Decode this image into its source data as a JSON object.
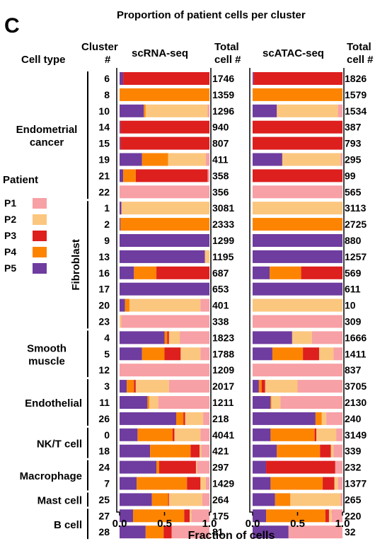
{
  "panel_letter": "C",
  "colors": {
    "P1": "#F7A0A5",
    "P2": "#FBC67E",
    "P3": "#DD1F1E",
    "P4": "#FD8400",
    "P5": "#6F3C9F"
  },
  "chart_data": {
    "type": "bar",
    "title": "Proportion of patient cells per cluster",
    "xlabel": "Fraction of cells",
    "xlim": [
      0,
      1
    ],
    "xticks": [
      "0.0",
      "0.5",
      "1.0"
    ],
    "headers": {
      "cell_type": "Cell type",
      "cluster_line1": "Cluster",
      "cluster_line2": "#",
      "total_line1": "Total",
      "total_line2": "cell #",
      "atac_total_line1": "Total",
      "atac_total_line2": "cell #"
    },
    "legend": {
      "title": "Patient",
      "entries": [
        "P1",
        "P2",
        "P3",
        "P4",
        "P5"
      ]
    },
    "panels": [
      "scRNA-seq",
      "scATAC-seq"
    ],
    "groups": [
      {
        "label": [
          "Endometrial",
          "cancer"
        ],
        "clusters": [
          "6",
          "8",
          "10",
          "14",
          "15",
          "19",
          "21",
          "22"
        ]
      },
      {
        "label": [
          "Fibroblast"
        ],
        "clusters": [
          "1",
          "2",
          "9",
          "13",
          "16",
          "17",
          "20",
          "23"
        ],
        "vertical": true
      },
      {
        "label": [
          "Smooth",
          "muscle"
        ],
        "clusters": [
          "4",
          "5",
          "12"
        ]
      },
      {
        "label": [
          "Endothelial"
        ],
        "clusters": [
          "3",
          "11",
          "26"
        ]
      },
      {
        "label": [
          "NK/T cell"
        ],
        "clusters": [
          "0",
          "18"
        ]
      },
      {
        "label": [
          "Macrophage"
        ],
        "clusters": [
          "24",
          "7"
        ]
      },
      {
        "label": [
          "Mast cell"
        ],
        "clusters": [
          "25"
        ]
      },
      {
        "label": [
          "B cell"
        ],
        "clusters": [
          "27",
          "28"
        ]
      }
    ],
    "rows": [
      {
        "cluster": "6",
        "rna_total": "1746",
        "atac_total": "1826",
        "rna": [
          0,
          0,
          0.96,
          0,
          0.04
        ],
        "atac": [
          0,
          0,
          0.99,
          0,
          0.01
        ]
      },
      {
        "cluster": "8",
        "rna_total": "1359",
        "atac_total": "1579",
        "rna": [
          0,
          0,
          0,
          1.0,
          0
        ],
        "atac": [
          0,
          0,
          0,
          1.0,
          0
        ]
      },
      {
        "cluster": "10",
        "rna_total": "1296",
        "atac_total": "1534",
        "rna": [
          0.02,
          0.69,
          0,
          0.02,
          0.27
        ],
        "atac": [
          0.05,
          0.68,
          0,
          0,
          0.27
        ]
      },
      {
        "cluster": "14",
        "rna_total": "940",
        "atac_total": "387",
        "rna": [
          0,
          0,
          0.99,
          0,
          0.01
        ],
        "atac": [
          0,
          0,
          1.0,
          0,
          0
        ]
      },
      {
        "cluster": "15",
        "rna_total": "807",
        "atac_total": "793",
        "rna": [
          0,
          0,
          0.99,
          0,
          0.01
        ],
        "atac": [
          0,
          0,
          1.0,
          0,
          0
        ]
      },
      {
        "cluster": "19",
        "rna_total": "411",
        "atac_total": "295",
        "rna": [
          0.04,
          0.42,
          0,
          0.29,
          0.25
        ],
        "atac": [
          0.02,
          0.65,
          0,
          0,
          0.33
        ]
      },
      {
        "cluster": "21",
        "rna_total": "358",
        "atac_total": "99",
        "rna": [
          0.02,
          0,
          0.8,
          0.14,
          0.04
        ],
        "atac": [
          0,
          0,
          1.0,
          0,
          0
        ]
      },
      {
        "cluster": "22",
        "rna_total": "356",
        "atac_total": "565",
        "rna": [
          1.0,
          0,
          0,
          0,
          0
        ],
        "atac": [
          1.0,
          0,
          0,
          0,
          0
        ]
      },
      {
        "cluster": "1",
        "rna_total": "3081",
        "atac_total": "3113",
        "rna": [
          0,
          0.98,
          0,
          0,
          0.02
        ],
        "atac": [
          0,
          1.0,
          0,
          0,
          0
        ]
      },
      {
        "cluster": "2",
        "rna_total": "2333",
        "atac_total": "2725",
        "rna": [
          0,
          0,
          0,
          0.99,
          0.01
        ],
        "atac": [
          0,
          0,
          0,
          1.0,
          0
        ]
      },
      {
        "cluster": "9",
        "rna_total": "1299",
        "atac_total": "880",
        "rna": [
          0,
          0,
          0,
          0,
          1.0
        ],
        "atac": [
          0,
          0,
          0,
          0,
          1.0
        ]
      },
      {
        "cluster": "13",
        "rna_total": "1195",
        "atac_total": "1257",
        "rna": [
          0,
          0.05,
          0,
          0,
          0.95
        ],
        "atac": [
          0,
          0,
          0,
          0,
          1.0
        ]
      },
      {
        "cluster": "16",
        "rna_total": "687",
        "atac_total": "569",
        "rna": [
          0,
          0,
          0.59,
          0.25,
          0.16
        ],
        "atac": [
          0,
          0,
          0.46,
          0.35,
          0.19
        ]
      },
      {
        "cluster": "17",
        "rna_total": "653",
        "atac_total": "611",
        "rna": [
          0,
          0,
          0,
          0,
          1.0
        ],
        "atac": [
          0,
          0,
          0,
          0,
          1.0
        ]
      },
      {
        "cluster": "20",
        "rna_total": "401",
        "atac_total": "10",
        "rna": [
          0.1,
          0.79,
          0,
          0.05,
          0.06
        ],
        "atac": [
          0,
          1.0,
          0,
          0,
          0
        ]
      },
      {
        "cluster": "23",
        "rna_total": "338",
        "atac_total": "309",
        "rna": [
          0.98,
          0.02,
          0,
          0,
          0
        ],
        "atac": [
          1.0,
          0,
          0,
          0,
          0
        ]
      },
      {
        "cluster": "4",
        "rna_total": "1823",
        "atac_total": "1666",
        "rna": [
          0.33,
          0.12,
          0.02,
          0.03,
          0.5
        ],
        "atac": [
          0.34,
          0.22,
          0,
          0,
          0.44
        ]
      },
      {
        "cluster": "5",
        "rna_total": "1788",
        "atac_total": "1411",
        "rna": [
          0.1,
          0.22,
          0.18,
          0.25,
          0.25
        ],
        "atac": [
          0.1,
          0.16,
          0.18,
          0.34,
          0.22
        ]
      },
      {
        "cluster": "12",
        "rna_total": "1209",
        "atac_total": "837",
        "rna": [
          1.0,
          0,
          0,
          0,
          0
        ],
        "atac": [
          1.0,
          0,
          0,
          0,
          0
        ]
      },
      {
        "cluster": "3",
        "rna_total": "2017",
        "atac_total": "3705",
        "rna": [
          0.45,
          0.37,
          0.02,
          0.08,
          0.08
        ],
        "atac": [
          0.5,
          0.36,
          0.04,
          0.03,
          0.07
        ]
      },
      {
        "cluster": "11",
        "rna_total": "1211",
        "atac_total": "2130",
        "rna": [
          0.57,
          0.1,
          0,
          0.02,
          0.31
        ],
        "atac": [
          0.69,
          0.1,
          0,
          0.01,
          0.2
        ]
      },
      {
        "cluster": "26",
        "rna_total": "218",
        "atac_total": "240",
        "rna": [
          0.07,
          0.2,
          0.02,
          0.08,
          0.63
        ],
        "atac": [
          0.18,
          0.05,
          0,
          0.07,
          0.7
        ]
      },
      {
        "cluster": "0",
        "rna_total": "4041",
        "atac_total": "3149",
        "rna": [
          0.1,
          0.29,
          0.02,
          0.39,
          0.2
        ],
        "atac": [
          0.07,
          0.22,
          0.02,
          0.49,
          0.2
        ]
      },
      {
        "cluster": "18",
        "rna_total": "421",
        "atac_total": "339",
        "rna": [
          0.09,
          0.02,
          0.1,
          0.45,
          0.34
        ],
        "atac": [
          0.1,
          0.03,
          0.12,
          0.48,
          0.27
        ]
      },
      {
        "cluster": "24",
        "rna_total": "297",
        "atac_total": "232",
        "rna": [
          0.14,
          0.01,
          0.41,
          0.03,
          0.41
        ],
        "atac": [
          0.08,
          0,
          0.77,
          0,
          0.15
        ]
      },
      {
        "cluster": "7",
        "rna_total": "1429",
        "atac_total": "1377",
        "rna": [
          0.04,
          0.06,
          0.15,
          0.56,
          0.19
        ],
        "atac": [
          0.05,
          0.04,
          0.13,
          0.58,
          0.2
        ]
      },
      {
        "cluster": "25",
        "rna_total": "264",
        "atac_total": "265",
        "rna": [
          0.08,
          0.37,
          0.01,
          0.18,
          0.36
        ],
        "atac": [
          0.02,
          0.56,
          0,
          0.17,
          0.25
        ]
      },
      {
        "cluster": "27",
        "rna_total": "175",
        "atac_total": "220",
        "rna": [
          0.2,
          0.02,
          0.06,
          0.57,
          0.15
        ],
        "atac": [
          0.12,
          0.03,
          0.04,
          0.66,
          0.15
        ]
      },
      {
        "cluster": "28",
        "rna_total": "81",
        "atac_total": "32",
        "rna": [
          0.42,
          0,
          0.09,
          0.2,
          0.29
        ],
        "atac": [
          0.6,
          0,
          0,
          0,
          0.4
        ]
      }
    ]
  }
}
